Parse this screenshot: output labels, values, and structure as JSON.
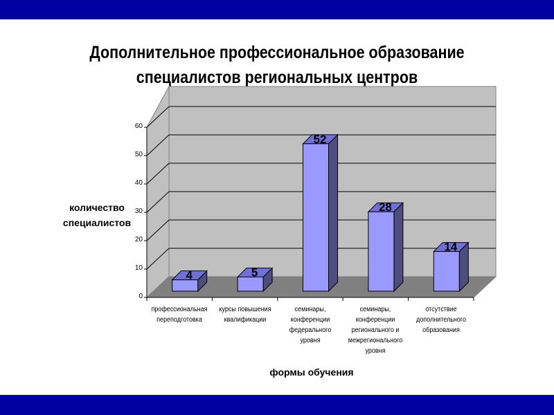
{
  "slide": {
    "title_line1": "Дополнительное профессиональное образование",
    "title_line2": "специалистов региональных центров",
    "colors": {
      "band": "#0000a0",
      "bar_front": "#9999ff",
      "bar_side": "#4d4d80",
      "wall": "#c0c0c0",
      "floor": "#808080"
    }
  },
  "chart_data": {
    "type": "bar",
    "title": "Дополнительное профессиональное образование специалистов региональных центров",
    "xlabel": "формы обучения",
    "ylabel": "количество специалистов",
    "categories": [
      "профессиональная переподготовка",
      "курсы повышения квалификации",
      "семинары, конференции федерального уровня",
      "семинары, конференции регионального и межрегионального уровня",
      "отсутствие дополнительного образования"
    ],
    "values": [
      4,
      5,
      52,
      28,
      14
    ],
    "ylim": [
      0,
      60
    ],
    "yticks": [
      0,
      10,
      20,
      30,
      40,
      50,
      60
    ],
    "grid": true,
    "style": "3d-column",
    "data_labels": true
  },
  "labels": {
    "ylabel_line1": "количество",
    "ylabel_line2": "специалистов",
    "xlabel": "формы обучения",
    "cat0": [
      "профессиональная",
      "переподготовка"
    ],
    "cat1": [
      "курсы повышения",
      "квалификации"
    ],
    "cat2": [
      "семинары,",
      "конференции",
      "федерального",
      "уровня"
    ],
    "cat3": [
      "семинары,",
      "конференции",
      "регионального и",
      "межрегионального",
      "уровня"
    ],
    "cat4": [
      "отсутствие",
      "дополнительного",
      "образования"
    ]
  }
}
